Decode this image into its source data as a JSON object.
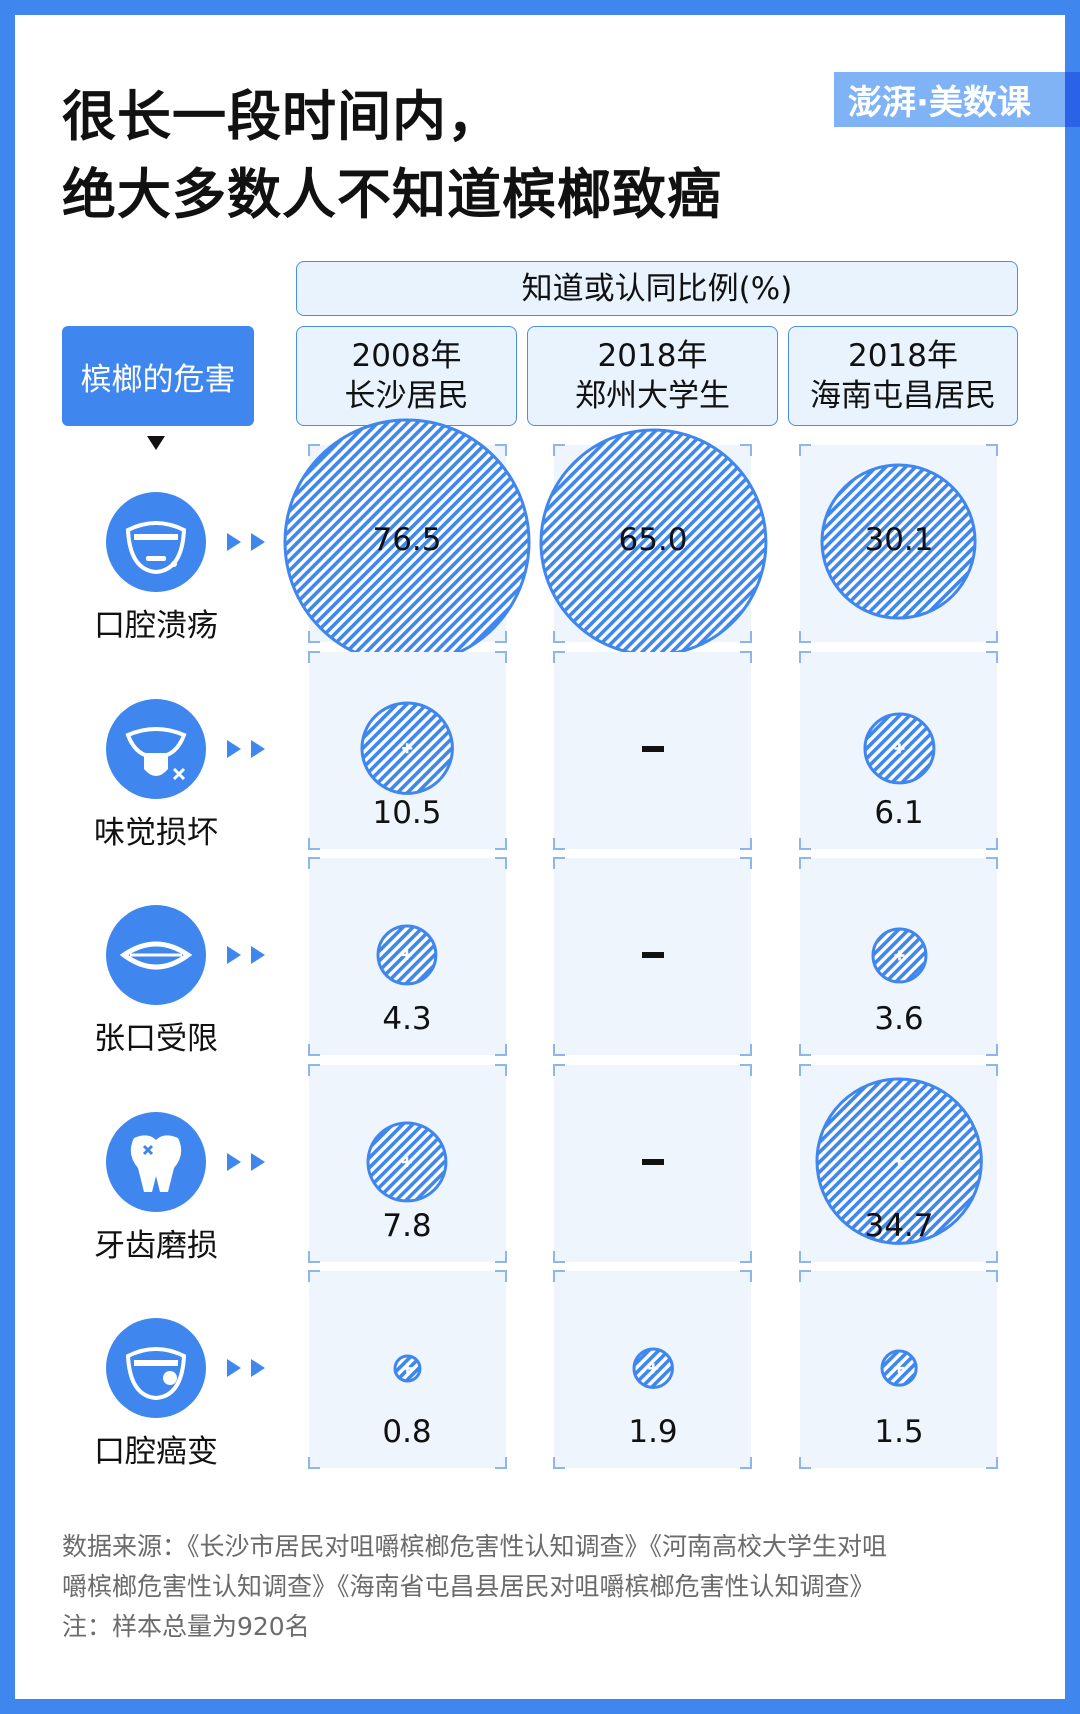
{
  "title_lines": [
    "很长一段时间内，",
    "绝大多数人不知道槟榔致癌"
  ],
  "logo_text": "澎湃·美数课",
  "colors": {
    "accent": "#3f86ee",
    "cell_bg": "#eef5fd",
    "header_bg": "#e8f3fd",
    "logo_bg": "#7fb3f5"
  },
  "chart_data": {
    "type": "bubble-table",
    "title": "很长一段时间内，绝大多数人不知道槟榔致癌",
    "value_header": "知道或认同比例(%)",
    "row_header": "槟榔的危害",
    "columns": [
      {
        "year": "2008年",
        "group": "长沙居民"
      },
      {
        "year": "2018年",
        "group": "郑州大学生"
      },
      {
        "year": "2018年",
        "group": "海南屯昌居民"
      }
    ],
    "rows": [
      {
        "label": "口腔溃疡",
        "icon": "mouth-ulcer-icon",
        "values": [
          76.5,
          65.0,
          30.1
        ]
      },
      {
        "label": "味觉损坏",
        "icon": "tongue-taste-damage-icon",
        "values": [
          10.5,
          null,
          6.1
        ]
      },
      {
        "label": "张口受限",
        "icon": "lips-restricted-icon",
        "values": [
          4.3,
          null,
          3.6
        ]
      },
      {
        "label": "牙齿磨损",
        "icon": "tooth-damage-icon",
        "values": [
          7.8,
          null,
          34.7
        ]
      },
      {
        "label": "口腔癌变",
        "icon": "mouth-cancer-icon",
        "values": [
          0.8,
          1.9,
          1.5
        ]
      }
    ],
    "missing_symbol": "-"
  },
  "source_lines": [
    "数据来源：《长沙市居民对咀嚼槟榔危害性认知调查》《河南高校大学生对咀",
    "嚼槟榔危害性认知调查》《海南省屯昌县居民对咀嚼槟榔危害性认知调查》",
    "注：样本总量为920名"
  ]
}
